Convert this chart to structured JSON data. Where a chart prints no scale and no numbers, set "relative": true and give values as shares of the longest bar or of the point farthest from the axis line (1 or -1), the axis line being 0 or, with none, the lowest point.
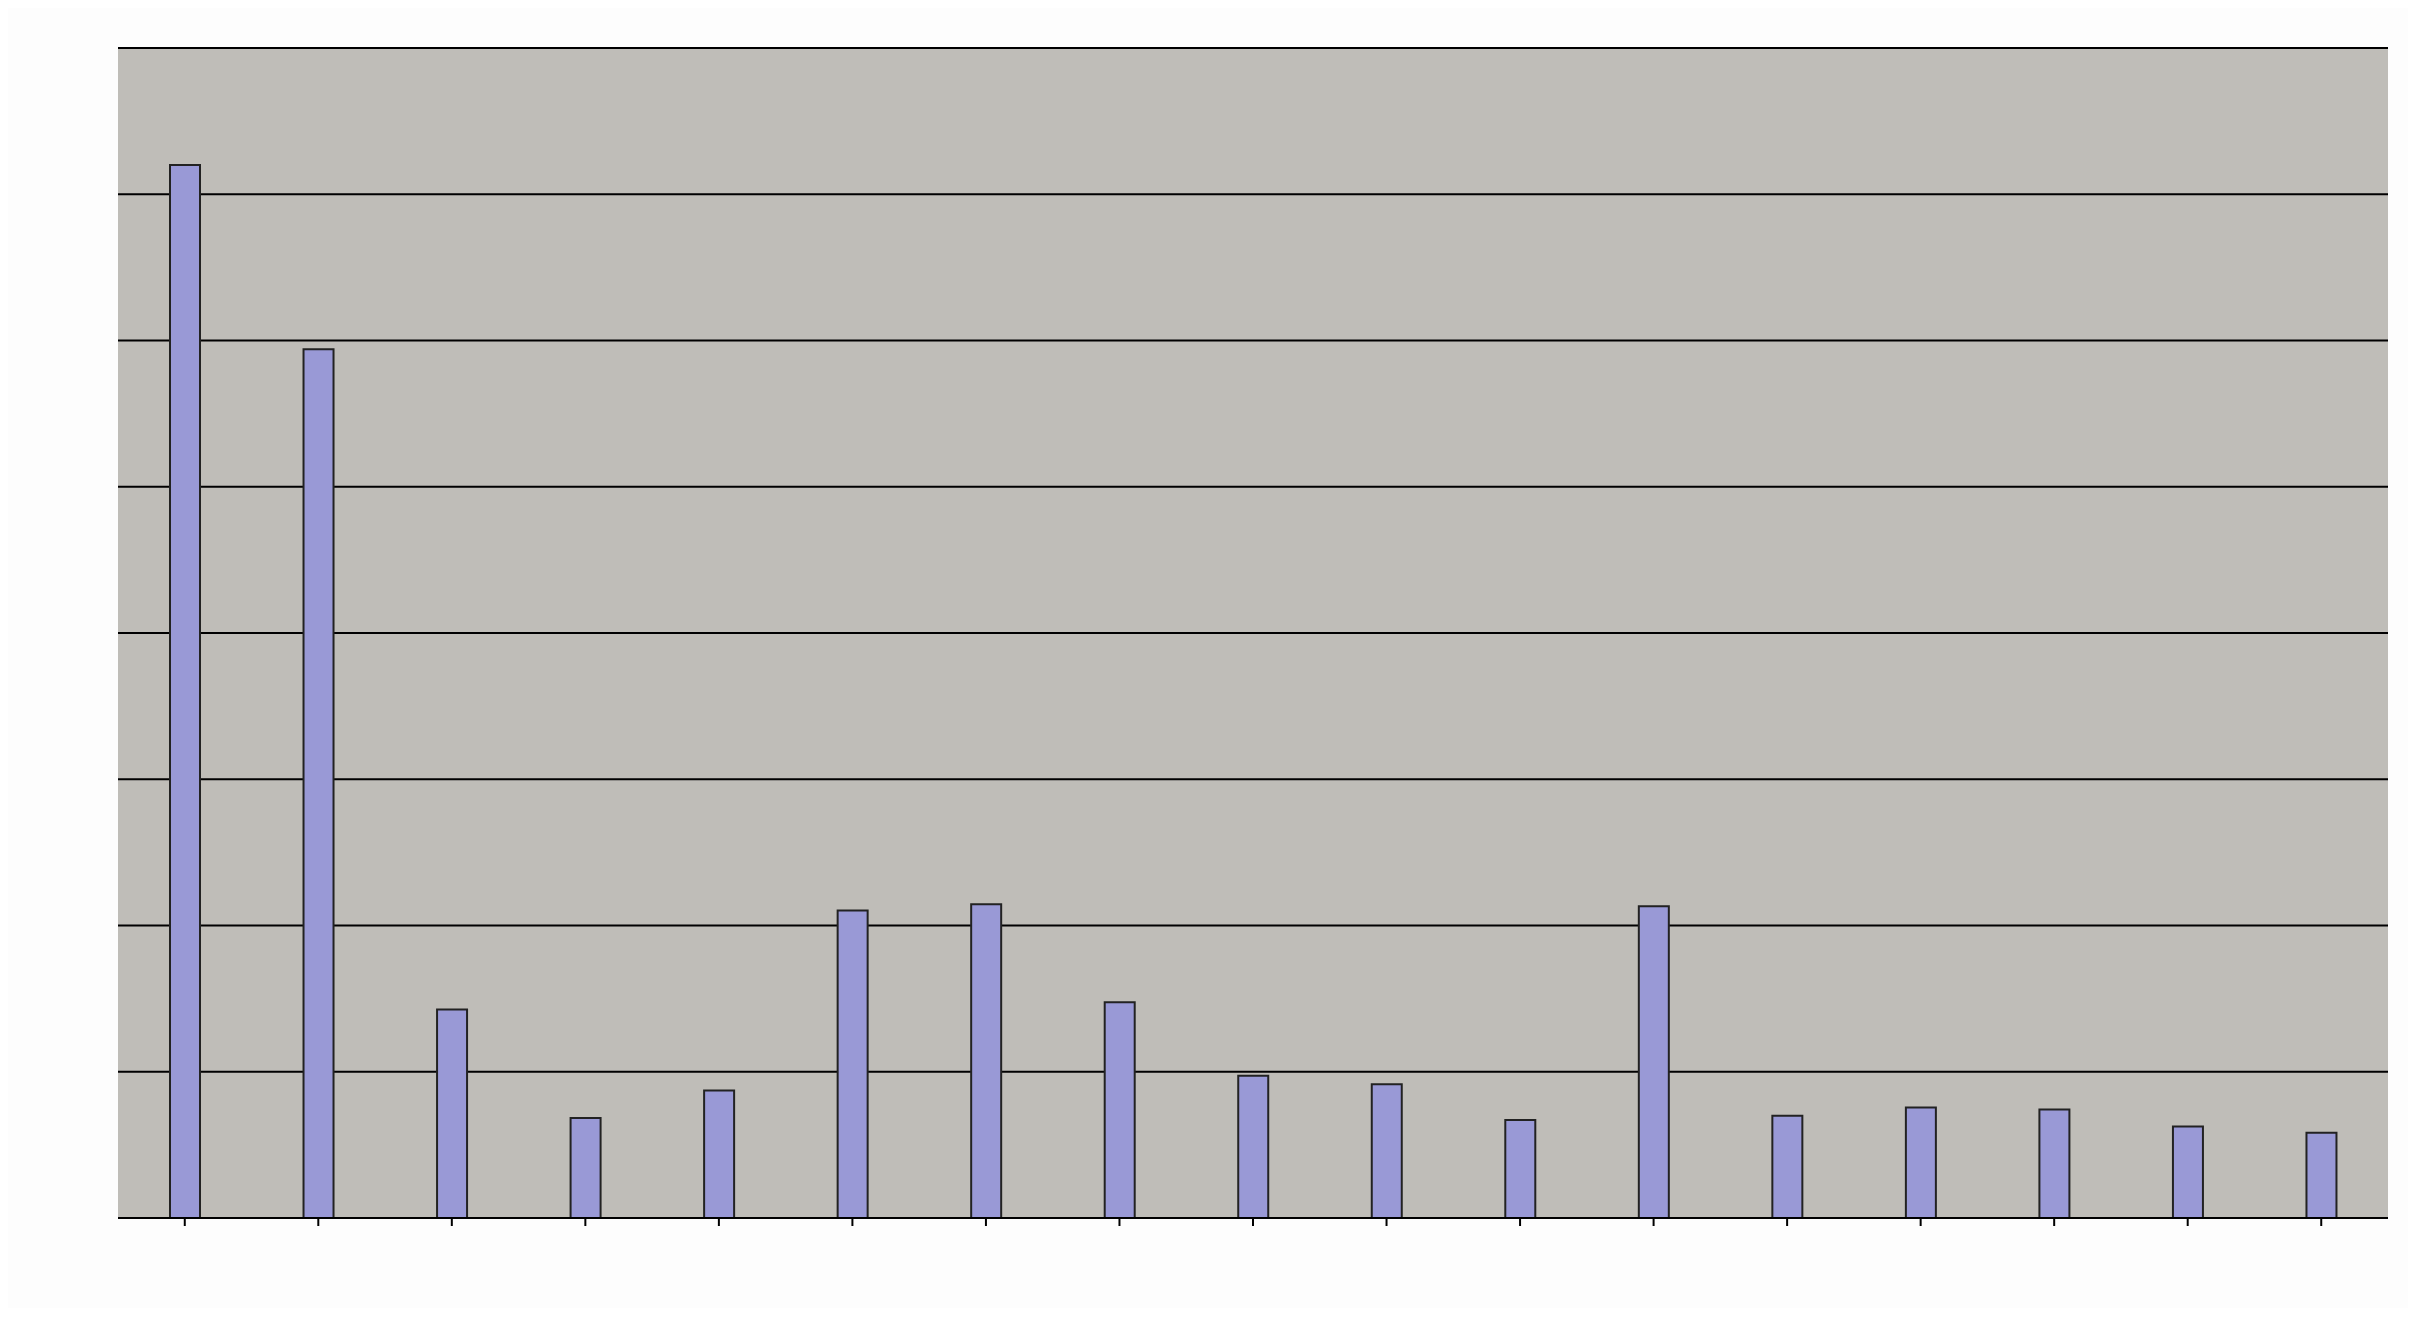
{
  "chart_data": {
    "type": "bar",
    "relative": true,
    "grid": "y",
    "color": "#9999d6",
    "categories": [
      null,
      null,
      null,
      null,
      null,
      null,
      null,
      null,
      null,
      null,
      null,
      null,
      null,
      null,
      null,
      null,
      null
    ],
    "values": [
      1,
      0.825,
      0.198,
      0.095,
      0.121,
      0.292,
      0.298,
      0.205,
      0.135,
      0.127,
      0.093,
      0.296,
      0.097,
      0.105,
      0.103,
      0.087,
      0.081
    ]
  }
}
